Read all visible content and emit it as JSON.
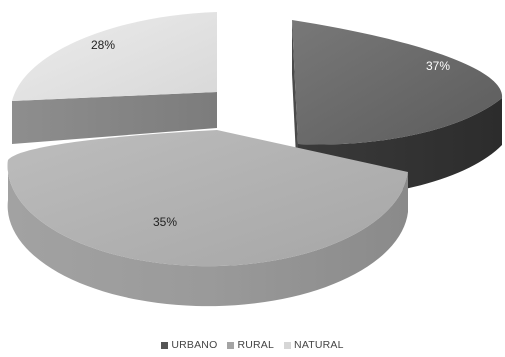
{
  "chart_data": {
    "type": "pie",
    "title": "",
    "labels": [
      "URBANO",
      "RURAL",
      "NATURAL"
    ],
    "values": [
      37,
      35,
      28
    ],
    "value_labels": [
      "37%",
      "35%",
      "28%"
    ],
    "exploded": true,
    "three_d": true,
    "legend_position": "bottom",
    "colors": {
      "URBANO": "#6a6a6a",
      "RURAL": "#a9a9a9",
      "NATURAL": "#dedede"
    }
  },
  "legend": [
    {
      "label": "URBANO",
      "color": "#555555"
    },
    {
      "label": "RURAL",
      "color": "#a4a4a4"
    },
    {
      "label": "NATURAL",
      "color": "#d6d6d6"
    }
  ]
}
